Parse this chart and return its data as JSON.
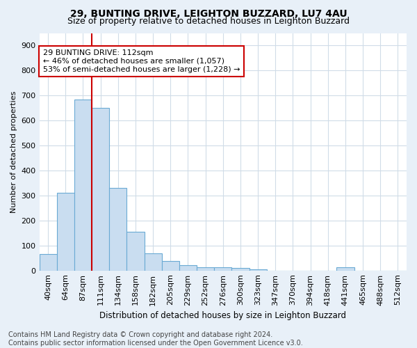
{
  "title1": "29, BUNTING DRIVE, LEIGHTON BUZZARD, LU7 4AU",
  "title2": "Size of property relative to detached houses in Leighton Buzzard",
  "xlabel": "Distribution of detached houses by size in Leighton Buzzard",
  "ylabel": "Number of detached properties",
  "footnote": "Contains HM Land Registry data © Crown copyright and database right 2024.\nContains public sector information licensed under the Open Government Licence v3.0.",
  "bar_labels": [
    "40sqm",
    "64sqm",
    "87sqm",
    "111sqm",
    "134sqm",
    "158sqm",
    "182sqm",
    "205sqm",
    "229sqm",
    "252sqm",
    "276sqm",
    "300sqm",
    "323sqm",
    "347sqm",
    "370sqm",
    "394sqm",
    "418sqm",
    "441sqm",
    "465sqm",
    "488sqm",
    "512sqm"
  ],
  "bar_values": [
    65,
    310,
    685,
    650,
    330,
    155,
    68,
    37,
    22,
    12,
    12,
    10,
    5,
    0,
    0,
    0,
    0,
    13,
    0,
    0,
    0
  ],
  "bar_color": "#c9ddf0",
  "bar_edge_color": "#6aaad4",
  "vline_color": "#cc0000",
  "annotation_box_text": "29 BUNTING DRIVE: 112sqm\n← 46% of detached houses are smaller (1,057)\n53% of semi-detached houses are larger (1,228) →",
  "annotation_box_color": "#cc0000",
  "annotation_box_bg": "#ffffff",
  "ylim": [
    0,
    950
  ],
  "yticks": [
    0,
    100,
    200,
    300,
    400,
    500,
    600,
    700,
    800,
    900
  ],
  "plot_bg": "#ffffff",
  "fig_bg": "#e8f0f8",
  "grid_color": "#d0dce8",
  "title1_fontsize": 10,
  "title2_fontsize": 9,
  "footnote_fontsize": 7
}
